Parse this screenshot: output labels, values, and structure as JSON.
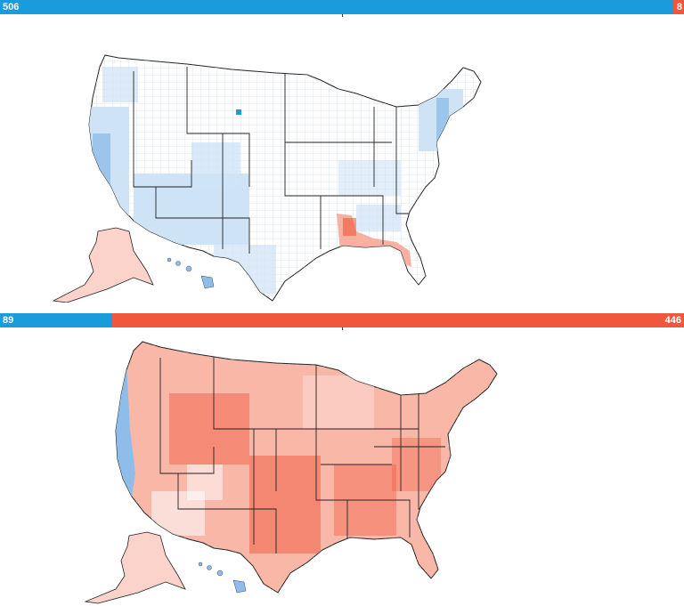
{
  "colors": {
    "dem": "#1a9bdc",
    "rep": "#f0573c",
    "dem_light": "#cfe3f7",
    "dem_mid": "#8fbde9",
    "rep_light": "#fcd3cb",
    "rep_mid": "#f7a391",
    "state_border": "#222222",
    "county_line": "#c9d4ea"
  },
  "panels": [
    {
      "bar": {
        "dem_value": "506",
        "rep_value": "8",
        "dem_count": 506,
        "rep_count": 8
      },
      "theme": "blue",
      "insets": [
        "alaska",
        "hawaii"
      ]
    },
    {
      "bar": {
        "dem_value": "89",
        "rep_value": "446",
        "dem_count": 89,
        "rep_count": 446
      },
      "theme": "red",
      "insets": [
        "alaska",
        "hawaii"
      ]
    }
  ]
}
